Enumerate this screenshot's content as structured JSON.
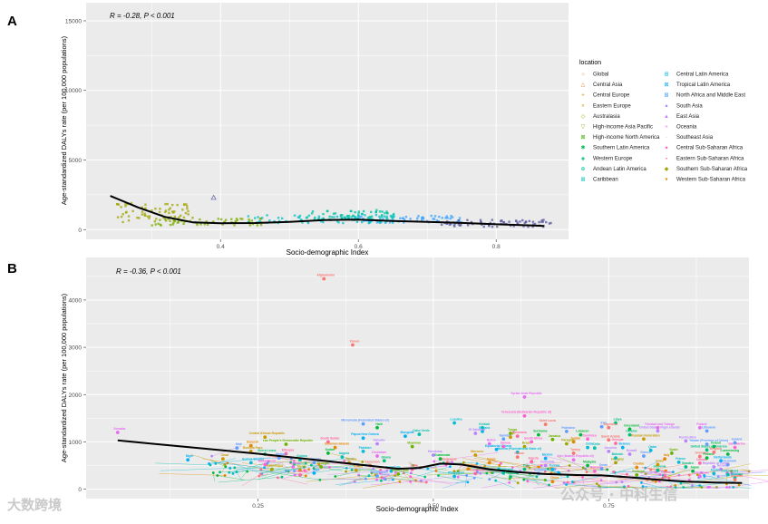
{
  "panels": [
    {
      "letter": "A",
      "annotation": "R = -0.28, P < 0.001",
      "xlabel": "Socio-demographic Index",
      "ylabel": "Age-standardized DALYs rate (per 100,000 populations)",
      "xticks": [
        "0.4",
        "0.6",
        "0.8"
      ],
      "yticks": [
        "0",
        "5000",
        "10000",
        "15000"
      ]
    },
    {
      "letter": "B",
      "annotation": "R = -0.36, P < 0.001",
      "xlabel": "Socio-demographic Index",
      "ylabel": "Age-standardized DALYs rate (per 100,000 populations)",
      "xticks": [
        "0.25",
        "0.50",
        "0.75"
      ],
      "yticks": [
        "0",
        "1000",
        "2000",
        "3000",
        "4000"
      ]
    }
  ],
  "legend": {
    "title": "location",
    "items": [
      {
        "label": "Global",
        "symbol": "○",
        "color": "#F8766D"
      },
      {
        "label": "Central Asia",
        "symbol": "△",
        "color": "#EA8331"
      },
      {
        "label": "Central Europe",
        "symbol": "+",
        "color": "#D89000"
      },
      {
        "label": "Eastern Europe",
        "symbol": "×",
        "color": "#C09B00"
      },
      {
        "label": "Australasia",
        "symbol": "◇",
        "color": "#A3A500"
      },
      {
        "label": "High-income Asia Pacific",
        "symbol": "▽",
        "color": "#7CAE00"
      },
      {
        "label": "High-income North America",
        "symbol": "⊠",
        "color": "#39B600"
      },
      {
        "label": "Southern Latin America",
        "symbol": "✱",
        "color": "#00BB4E"
      },
      {
        "label": "Western Europe",
        "symbol": "◈",
        "color": "#00BF7D"
      },
      {
        "label": "Andean Latin America",
        "symbol": "⊕",
        "color": "#00C1A3"
      },
      {
        "label": "Caribbean",
        "symbol": "⊠",
        "color": "#00BFC4"
      },
      {
        "label": "Central Latin America",
        "symbol": "⊞",
        "color": "#00BAE0"
      },
      {
        "label": "Tropical Latin America",
        "symbol": "⊠",
        "color": "#00B0F6"
      },
      {
        "label": "North Africa and Middle East",
        "symbol": "⊠",
        "color": "#35A2FF"
      },
      {
        "label": "South Asia",
        "symbol": "●",
        "color": "#9590FF"
      },
      {
        "label": "East Asia",
        "symbol": "▲",
        "color": "#C77CFF"
      },
      {
        "label": "Oceania",
        "symbol": "+",
        "color": "#E76BF3"
      },
      {
        "label": "Southeast Asia",
        "symbol": "·",
        "color": "#FA62DB"
      },
      {
        "label": "Central Sub-Saharan Africa",
        "symbol": "●",
        "color": "#FF62BC"
      },
      {
        "label": "Eastern Sub-Saharan Africa",
        "symbol": "▪",
        "color": "#FF6C91"
      },
      {
        "label": "Southern Sub-Saharan Africa",
        "symbol": "◆",
        "color": "#A3A500"
      },
      {
        "label": "Western Sub-Saharan Africa",
        "symbol": "▾",
        "color": "#D89000"
      }
    ]
  },
  "colors": {
    "panel_bg": "#ebebeb",
    "grid": "#ffffff",
    "smooth": "#000000",
    "palette": [
      "#F8766D",
      "#E58700",
      "#C99800",
      "#A3A500",
      "#6BB100",
      "#00BA38",
      "#00BF7D",
      "#00C0AF",
      "#00BCD8",
      "#00B0F6",
      "#619CFF",
      "#B983FF",
      "#E76BF3",
      "#FD61D1",
      "#FF67A4"
    ]
  },
  "country_labels": [
    {
      "label": "Afghanistan",
      "x": 0.344,
      "y": 4450,
      "color": "#F8766D"
    },
    {
      "label": "Yemen",
      "x": 0.385,
      "y": 3050,
      "color": "#F8766D"
    },
    {
      "label": "Syrian Arab Republic",
      "x": 0.63,
      "y": 1950,
      "color": "#E76BF3"
    },
    {
      "label": "Somalia",
      "x": 0.05,
      "y": 1200,
      "color": "#E76BF3"
    },
    {
      "label": "Central African Republic",
      "x": 0.26,
      "y": 1100,
      "color": "#C99800"
    },
    {
      "label": "Niger",
      "x": 0.15,
      "y": 620,
      "color": "#00B0F6"
    },
    {
      "label": "Mali",
      "x": 0.22,
      "y": 870,
      "color": "#619CFF"
    },
    {
      "label": "Chad",
      "x": 0.2,
      "y": 640,
      "color": "#C99800"
    },
    {
      "label": "Libya",
      "x": 0.76,
      "y": 1400,
      "color": "#00BF7D"
    },
    {
      "label": "Greenland",
      "x": 0.78,
      "y": 1270,
      "color": "#00BA38"
    },
    {
      "label": "Lesotho",
      "x": 0.53,
      "y": 1400,
      "color": "#00BCD8"
    },
    {
      "label": "Iraq",
      "x": 0.74,
      "y": 1320,
      "color": "#619CFF"
    },
    {
      "label": "Argentina",
      "x": 0.75,
      "y": 1300,
      "color": "#F8766D"
    },
    {
      "label": "Ukraine",
      "x": 0.78,
      "y": 1150,
      "color": "#00BF7D"
    },
    {
      "label": "Russian Federation",
      "x": 0.8,
      "y": 1060,
      "color": "#C99800"
    },
    {
      "label": "United States Virgin Islands",
      "x": 0.82,
      "y": 1230,
      "color": "#B983FF"
    },
    {
      "label": "Trinidad and Tobago",
      "x": 0.82,
      "y": 1300,
      "color": "#E76BF3"
    },
    {
      "label": "Poland",
      "x": 0.88,
      "y": 1300,
      "color": "#E76BF3"
    },
    {
      "label": "Lithuania",
      "x": 0.89,
      "y": 1230,
      "color": "#619CFF"
    },
    {
      "label": "Venezuela (Bolivarian Republic of)",
      "x": 0.63,
      "y": 1550,
      "color": "#FD61D1"
    },
    {
      "label": "Saint Lucia",
      "x": 0.66,
      "y": 1370,
      "color": "#F8766D"
    },
    {
      "label": "Kiribati",
      "x": 0.57,
      "y": 1300,
      "color": "#00C0AF"
    },
    {
      "label": "Micronesia (Federated States of)",
      "x": 0.4,
      "y": 1380,
      "color": "#619CFF"
    },
    {
      "label": "Lao People's Democratic Republic",
      "x": 0.29,
      "y": 950,
      "color": "#6BB100"
    },
    {
      "label": "South Sudan",
      "x": 0.35,
      "y": 1000,
      "color": "#FF67A4"
    },
    {
      "label": "Haiti",
      "x": 0.42,
      "y": 1300,
      "color": "#00BA38"
    },
    {
      "label": "Cabo Verde",
      "x": 0.48,
      "y": 1160,
      "color": "#00C0AF"
    },
    {
      "label": "Guyana",
      "x": 0.57,
      "y": 1220,
      "color": "#00BCD8"
    },
    {
      "label": "El Salvador",
      "x": 0.56,
      "y": 1180,
      "color": "#B983FF"
    },
    {
      "label": "Mongolia",
      "x": 0.46,
      "y": 1120,
      "color": "#00B0F6"
    },
    {
      "label": "Burkina Faso",
      "x": 0.24,
      "y": 800,
      "color": "#C99800"
    },
    {
      "label": "Burundi",
      "x": 0.24,
      "y": 920,
      "color": "#E58700"
    },
    {
      "label": "Mozambique",
      "x": 0.27,
      "y": 420,
      "color": "#A3A500"
    },
    {
      "label": "Benin",
      "x": 0.31,
      "y": 400,
      "color": "#C99800"
    },
    {
      "label": "Guinea",
      "x": 0.31,
      "y": 620,
      "color": "#00C0AF"
    },
    {
      "label": "Ethiopia",
      "x": 0.29,
      "y": 750,
      "color": "#FF67A4"
    },
    {
      "label": "Zambia",
      "x": 0.38,
      "y": 560,
      "color": "#C99800"
    },
    {
      "label": "Nepal",
      "x": 0.43,
      "y": 230,
      "color": "#B983FF"
    },
    {
      "label": "Bangladesh",
      "x": 0.42,
      "y": 280,
      "color": "#619CFF"
    },
    {
      "label": "India",
      "x": 0.47,
      "y": 420,
      "color": "#FF67A4"
    },
    {
      "label": "Philippines",
      "x": 0.53,
      "y": 270,
      "color": "#00BCD8"
    },
    {
      "label": "Indonesia",
      "x": 0.56,
      "y": 330,
      "color": "#FF67A4"
    },
    {
      "label": "Thailand",
      "x": 0.61,
      "y": 260,
      "color": "#00BF7D"
    },
    {
      "label": "Brazil",
      "x": 0.63,
      "y": 900,
      "color": "#A3A500"
    },
    {
      "label": "Mexico",
      "x": 0.66,
      "y": 650,
      "color": "#00B0F6"
    },
    {
      "label": "Colombia",
      "x": 0.66,
      "y": 500,
      "color": "#B983FF"
    },
    {
      "label": "Turkey",
      "x": 0.7,
      "y": 760,
      "color": "#F8766D"
    },
    {
      "label": "China",
      "x": 0.67,
      "y": 160,
      "color": "#E58700"
    },
    {
      "label": "Chile",
      "x": 0.73,
      "y": 870,
      "color": "#00C0AF"
    },
    {
      "label": "Greece",
      "x": 0.8,
      "y": 700,
      "color": "#619CFF"
    },
    {
      "label": "Italy",
      "x": 0.83,
      "y": 640,
      "color": "#E58700"
    },
    {
      "label": "Spain",
      "x": 0.84,
      "y": 760,
      "color": "#6BB100"
    },
    {
      "label": "France",
      "x": 0.85,
      "y": 570,
      "color": "#00BCD8"
    },
    {
      "label": "Sweden",
      "x": 0.86,
      "y": 470,
      "color": "#00BF7D"
    },
    {
      "label": "Japan",
      "x": 0.87,
      "y": 380,
      "color": "#00BA38"
    },
    {
      "label": "Canada",
      "x": 0.88,
      "y": 550,
      "color": "#FF67A4"
    },
    {
      "label": "Germany",
      "x": 0.88,
      "y": 690,
      "color": "#F8766D"
    },
    {
      "label": "Finland",
      "x": 0.89,
      "y": 660,
      "color": "#00BA38"
    },
    {
      "label": "Belgium",
      "x": 0.9,
      "y": 780,
      "color": "#F8766D"
    },
    {
      "label": "Austria",
      "x": 0.9,
      "y": 330,
      "color": "#00BCD8"
    },
    {
      "label": "Ireland",
      "x": 0.9,
      "y": 900,
      "color": "#00BA38"
    },
    {
      "label": "Norway",
      "x": 0.91,
      "y": 420,
      "color": "#B983FF"
    },
    {
      "label": "Netherlands",
      "x": 0.91,
      "y": 600,
      "color": "#00B0F6"
    },
    {
      "label": "Luxembourg",
      "x": 0.92,
      "y": 740,
      "color": "#00BA38"
    },
    {
      "label": "Switzerland",
      "x": 0.92,
      "y": 310,
      "color": "#00C0AF"
    },
    {
      "label": "Denmark",
      "x": 0.92,
      "y": 520,
      "color": "#619CFF"
    },
    {
      "label": "Monaco",
      "x": 0.93,
      "y": 240,
      "color": "#00C0AF"
    },
    {
      "label": "San Marino",
      "x": 0.93,
      "y": 880,
      "color": "#FD61D1"
    },
    {
      "label": "Andorra",
      "x": 0.93,
      "y": 200,
      "color": "#F8766D"
    },
    {
      "label": "Iceland",
      "x": 0.93,
      "y": 980,
      "color": "#619CFF"
    },
    {
      "label": "Republic of Korea",
      "x": 0.9,
      "y": 470,
      "color": "#B983FF"
    },
    {
      "label": "Singapore",
      "x": 0.88,
      "y": 270,
      "color": "#E76BF3"
    },
    {
      "label": "United States of America",
      "x": 0.89,
      "y": 830,
      "color": "#00BF7D"
    },
    {
      "label": "Taiwan (Province of China)",
      "x": 0.89,
      "y": 950,
      "color": "#619CFF"
    },
    {
      "label": "Puerto Rico",
      "x": 0.86,
      "y": 1020,
      "color": "#B983FF"
    },
    {
      "label": "Dominica",
      "x": 0.72,
      "y": 1060,
      "color": "#FD61D1"
    },
    {
      "label": "Georgia",
      "x": 0.76,
      "y": 970,
      "color": "#FF67A4"
    },
    {
      "label": "Armenia",
      "x": 0.75,
      "y": 800,
      "color": "#B983FF"
    },
    {
      "label": "Jamaica",
      "x": 0.67,
      "y": 1050,
      "color": "#6BB100"
    },
    {
      "label": "Paraguay",
      "x": 0.69,
      "y": 960,
      "color": "#A3A500"
    },
    {
      "label": "Bolivia (Plurinational State of)",
      "x": 0.62,
      "y": 780,
      "color": "#00BCD8"
    },
    {
      "label": "Equatorial Guinea",
      "x": 0.59,
      "y": 840,
      "color": "#00B0F6"
    },
    {
      "label": "Gabon",
      "x": 0.62,
      "y": 680,
      "color": "#F8766D"
    },
    {
      "label": "South Africa",
      "x": 0.64,
      "y": 1000,
      "color": "#FD61D1"
    },
    {
      "label": "Botswana",
      "x": 0.62,
      "y": 1120,
      "color": "#FF67A4"
    },
    {
      "label": "Namibia",
      "x": 0.6,
      "y": 1060,
      "color": "#619CFF"
    },
    {
      "label": "Morocco",
      "x": 0.56,
      "y": 720,
      "color": "#C99800"
    },
    {
      "label": "Egypt",
      "x": 0.58,
      "y": 560,
      "color": "#E58700"
    },
    {
      "label": "Pakistan",
      "x": 0.4,
      "y": 800,
      "color": "#00BCD8"
    },
    {
      "label": "Myanmar",
      "x": 0.47,
      "y": 900,
      "color": "#6BB100"
    },
    {
      "label": "Papua New Guinea",
      "x": 0.4,
      "y": 1080,
      "color": "#00B0F6"
    },
    {
      "label": "Vanuatu",
      "x": 0.42,
      "y": 960,
      "color": "#B983FF"
    },
    {
      "label": "Solomon Islands",
      "x": 0.36,
      "y": 880,
      "color": "#E58700"
    },
    {
      "label": "Sudan",
      "x": 0.35,
      "y": 760,
      "color": "#00BA38"
    },
    {
      "label": "Angola",
      "x": 0.37,
      "y": 680,
      "color": "#00C0AF"
    },
    {
      "label": "Nigeria",
      "x": 0.33,
      "y": 560,
      "color": "#619CFF"
    },
    {
      "label": "Senegal",
      "x": 0.34,
      "y": 470,
      "color": "#6BB100"
    },
    {
      "label": "Madagascar",
      "x": 0.26,
      "y": 520,
      "color": "#FD61D1"
    },
    {
      "label": "Malawi",
      "x": 0.28,
      "y": 660,
      "color": "#619CFF"
    },
    {
      "label": "Sierra Leone",
      "x": 0.26,
      "y": 740,
      "color": "#00BF7D"
    },
    {
      "label": "Guinea-Bissau",
      "x": 0.24,
      "y": 560,
      "color": "#00BCD8"
    },
    {
      "label": "Uganda",
      "x": 0.3,
      "y": 470,
      "color": "#E76BF3"
    },
    {
      "label": "Rwanda",
      "x": 0.31,
      "y": 300,
      "color": "#FF67A4"
    },
    {
      "label": "Togo",
      "x": 0.33,
      "y": 340,
      "color": "#00B0F6"
    },
    {
      "label": "Kenya",
      "x": 0.39,
      "y": 400,
      "color": "#C99800"
    },
    {
      "label": "Cameroon",
      "x": 0.41,
      "y": 500,
      "color": "#F8766D"
    },
    {
      "label": "Ghana",
      "x": 0.43,
      "y": 600,
      "color": "#00BF7D"
    },
    {
      "label": "Zimbabwe",
      "x": 0.42,
      "y": 700,
      "color": "#E76BF3"
    },
    {
      "label": "Cambodia",
      "x": 0.44,
      "y": 380,
      "color": "#00BCD8"
    },
    {
      "label": "Timor-Leste",
      "x": 0.45,
      "y": 320,
      "color": "#6BB100"
    },
    {
      "label": "Honduras",
      "x": 0.5,
      "y": 720,
      "color": "#B983FF"
    },
    {
      "label": "Guatemala",
      "x": 0.51,
      "y": 640,
      "color": "#00BA38"
    },
    {
      "label": "Nicaragua",
      "x": 0.52,
      "y": 560,
      "color": "#F8766D"
    },
    {
      "label": "Viet Nam",
      "x": 0.55,
      "y": 430,
      "color": "#E58700"
    },
    {
      "label": "Uzbekistan",
      "x": 0.6,
      "y": 340,
      "color": "#00C0AF"
    },
    {
      "label": "Peru",
      "x": 0.63,
      "y": 420,
      "color": "#00BF7D"
    },
    {
      "label": "Algeria",
      "x": 0.64,
      "y": 580,
      "color": "#FF67A4"
    },
    {
      "label": "Ecuador",
      "x": 0.65,
      "y": 330,
      "color": "#619CFF"
    },
    {
      "label": "Tunisia",
      "x": 0.67,
      "y": 420,
      "color": "#00BCD8"
    },
    {
      "label": "Iran (Islamic Republic of)",
      "x": 0.7,
      "y": 620,
      "color": "#E76BF3"
    },
    {
      "label": "Malaysia",
      "x": 0.72,
      "y": 500,
      "color": "#00BA38"
    },
    {
      "label": "Romania",
      "x": 0.73,
      "y": 380,
      "color": "#FD61D1"
    },
    {
      "label": "Hungary",
      "x": 0.76,
      "y": 560,
      "color": "#A3A500"
    },
    {
      "label": "Belarus",
      "x": 0.77,
      "y": 880,
      "color": "#00B0F6"
    },
    {
      "label": "Croatia",
      "x": 0.79,
      "y": 460,
      "color": "#E58700"
    },
    {
      "label": "Portugal",
      "x": 0.79,
      "y": 300,
      "color": "#6BB100"
    },
    {
      "label": "Slovenia",
      "x": 0.82,
      "y": 400,
      "color": "#00BF7D"
    },
    {
      "label": "Israel",
      "x": 0.82,
      "y": 520,
      "color": "#C99800"
    },
    {
      "label": "Cyprus",
      "x": 0.83,
      "y": 280,
      "color": "#FF67A4"
    },
    {
      "label": "Qatar",
      "x": 0.81,
      "y": 820,
      "color": "#00BCD8"
    },
    {
      "label": "Kuwait",
      "x": 0.78,
      "y": 740,
      "color": "#B983FF"
    },
    {
      "label": "Bahrain",
      "x": 0.76,
      "y": 660,
      "color": "#00C0AF"
    },
    {
      "label": "Saudi Arabia",
      "x": 0.75,
      "y": 1040,
      "color": "#F8766D"
    },
    {
      "label": "Oman",
      "x": 0.74,
      "y": 430,
      "color": "#619CFF"
    },
    {
      "label": "Lebanon",
      "x": 0.71,
      "y": 1150,
      "color": "#00BA38"
    },
    {
      "label": "Jordan",
      "x": 0.7,
      "y": 1000,
      "color": "#E58700"
    },
    {
      "label": "Palestine",
      "x": 0.69,
      "y": 1220,
      "color": "#619CFF"
    },
    {
      "label": "Fiji",
      "x": 0.61,
      "y": 1100,
      "color": "#C99800"
    },
    {
      "label": "Samoa",
      "x": 0.6,
      "y": 900,
      "color": "#FD61D1"
    },
    {
      "label": "Tonga",
      "x": 0.61,
      "y": 1180,
      "color": "#6BB100"
    },
    {
      "label": "Belize",
      "x": 0.58,
      "y": 960,
      "color": "#E76BF3"
    },
    {
      "label": "Suriname",
      "x": 0.65,
      "y": 1150,
      "color": "#00BA38"
    },
    {
      "label": "Cuba",
      "x": 0.72,
      "y": 880,
      "color": "#00BCD8"
    }
  ],
  "watermark": {
    "left": "大数跨境",
    "right": "公众号 · 中科生信"
  }
}
